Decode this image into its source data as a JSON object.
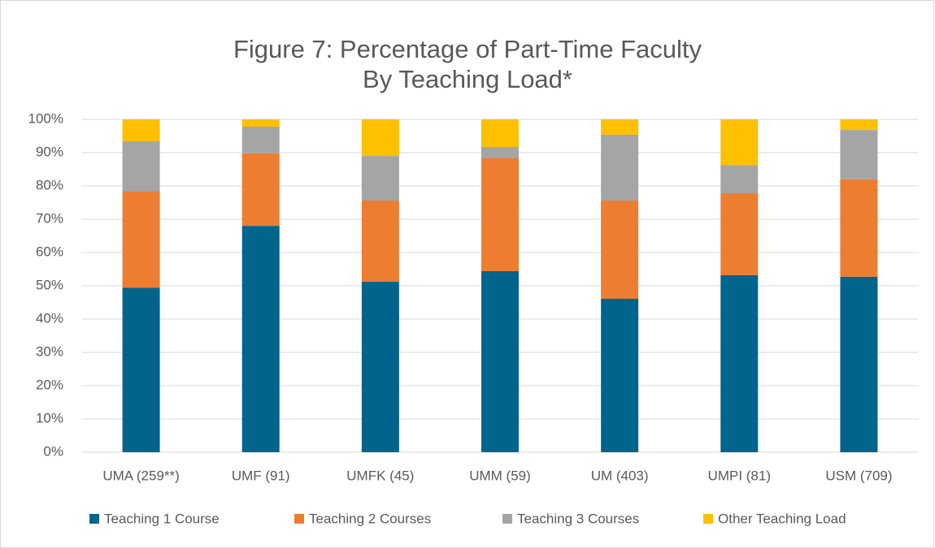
{
  "chart_data": {
    "type": "stacked_bar",
    "title": [
      "Figure 7: Percentage of Part-Time Faculty",
      "By Teaching Load*"
    ],
    "categories": [
      "UMA (259**)",
      "UMF (91)",
      "UMFK (45)",
      "UMM (59)",
      "UM (403)",
      "UMPI (81)",
      "USM (709)"
    ],
    "series": [
      {
        "name": "Teaching 1 Course",
        "color": "#00648c",
        "values": [
          49.4,
          68.0,
          51.2,
          54.4,
          46.1,
          53.2,
          52.7
        ]
      },
      {
        "name": "Teaching 2 Courses",
        "color": "#ed7d31",
        "values": [
          29.0,
          21.8,
          24.4,
          33.9,
          29.5,
          24.6,
          29.3
        ]
      },
      {
        "name": "Teaching 3 Courses",
        "color": "#a5a5a5",
        "values": [
          15.0,
          8.0,
          13.4,
          3.4,
          19.8,
          8.5,
          14.8
        ]
      },
      {
        "name": "Other Teaching Load",
        "color": "#ffc000",
        "values": [
          6.6,
          2.2,
          11.0,
          8.3,
          4.6,
          13.7,
          3.2
        ]
      }
    ],
    "ylim": [
      0,
      100
    ],
    "yticks": [
      {
        "value": 0,
        "label": "0%"
      },
      {
        "value": 10,
        "label": "10%"
      },
      {
        "value": 20,
        "label": "20%"
      },
      {
        "value": 30,
        "label": "30%"
      },
      {
        "value": 40,
        "label": "40%"
      },
      {
        "value": 50,
        "label": "50%"
      },
      {
        "value": 60,
        "label": "60%"
      },
      {
        "value": 70,
        "label": "70%"
      },
      {
        "value": 80,
        "label": "80%"
      },
      {
        "value": 90,
        "label": "90%"
      },
      {
        "value": 100,
        "label": "100%"
      }
    ],
    "grid": true,
    "legend": "bottom"
  }
}
